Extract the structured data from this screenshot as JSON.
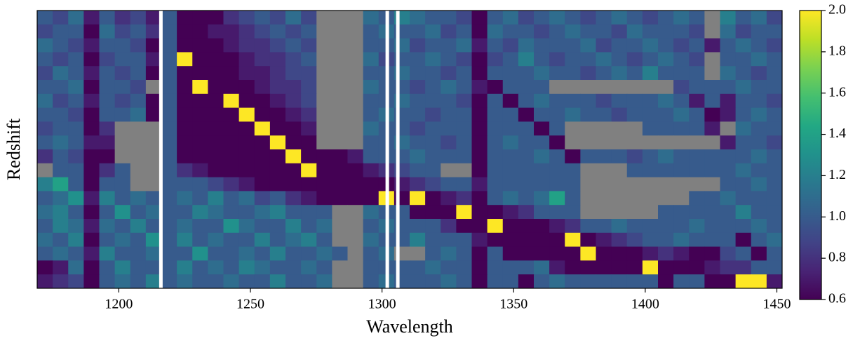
{
  "chart_data": {
    "type": "heatmap",
    "xlabel": "Wavelength",
    "ylabel": "Redshift",
    "xlim": [
      1169,
      1452
    ],
    "xticks": [
      1200,
      1250,
      1300,
      1350,
      1400,
      1450
    ],
    "colormap": "viridis",
    "clim": [
      0.6,
      2.0
    ],
    "cticks": [
      0.6,
      0.8,
      {
        "value": 1.0,
        "label": "1.0"
      },
      1.2,
      1.4,
      1.6,
      1.8,
      {
        "value": 2.0,
        "label": "2.0"
      }
    ],
    "mask_color": "#808080",
    "vlines": [
      1216,
      1302,
      1306
    ],
    "vline_color": "#ffffff",
    "values": [
      [
        1.0,
        0.9,
        1.1,
        0.7,
        1.0,
        0.8,
        0.9,
        0.7,
        1.0,
        0.6,
        0.6,
        0.6,
        0.8,
        0.9,
        1.0,
        0.9,
        1.1,
        0.9,
        null,
        null,
        null,
        1.1,
        1.0,
        1.2,
        1.1,
        1.0,
        1.0,
        0.9,
        0.6,
        1.0,
        1.1,
        0.9,
        1.0,
        1.1,
        1.0,
        0.9,
        1.0,
        1.1,
        1.0,
        0.9,
        1.0,
        1.1,
        1.0,
        null,
        1.2,
        1.0,
        1.1,
        0.9
      ],
      [
        0.9,
        1.0,
        1.0,
        0.6,
        1.1,
        0.9,
        1.0,
        0.8,
        1.0,
        0.6,
        0.6,
        0.7,
        0.7,
        0.8,
        0.9,
        1.0,
        0.9,
        1.0,
        null,
        null,
        null,
        1.0,
        1.1,
        1.0,
        1.0,
        1.1,
        0.9,
        1.0,
        0.6,
        1.1,
        1.0,
        1.0,
        0.9,
        1.0,
        1.1,
        1.0,
        1.0,
        0.9,
        1.1,
        1.0,
        1.0,
        1.0,
        0.9,
        null,
        1.1,
        0.9,
        1.0,
        1.0
      ],
      [
        1.1,
        1.0,
        0.9,
        0.7,
        1.0,
        1.0,
        0.9,
        0.6,
        1.0,
        0.6,
        0.6,
        0.6,
        0.7,
        0.8,
        0.8,
        0.9,
        1.0,
        0.9,
        null,
        null,
        null,
        1.0,
        1.0,
        1.1,
        0.9,
        1.0,
        1.0,
        1.1,
        0.7,
        1.0,
        0.9,
        1.1,
        1.0,
        1.0,
        1.0,
        1.1,
        0.9,
        1.0,
        1.0,
        1.1,
        1.0,
        0.9,
        1.0,
        0.7,
        1.0,
        1.1,
        1.0,
        0.9
      ],
      [
        1.0,
        0.9,
        1.0,
        0.6,
        0.9,
        1.0,
        1.0,
        0.7,
        1.0,
        2.0,
        0.6,
        0.6,
        0.6,
        0.7,
        0.8,
        0.8,
        0.9,
        1.0,
        null,
        null,
        null,
        1.1,
        0.9,
        1.0,
        1.0,
        1.1,
        1.0,
        0.9,
        0.6,
        0.9,
        1.0,
        1.2,
        1.0,
        0.9,
        1.0,
        1.0,
        1.1,
        1.0,
        0.9,
        1.0,
        1.1,
        1.0,
        0.9,
        null,
        1.0,
        1.0,
        1.1,
        1.0
      ],
      [
        0.9,
        1.1,
        1.0,
        0.7,
        1.0,
        0.9,
        1.0,
        0.6,
        1.0,
        0.6,
        0.6,
        0.6,
        0.6,
        0.7,
        0.7,
        0.8,
        0.9,
        0.9,
        null,
        null,
        null,
        1.0,
        1.0,
        1.1,
        1.0,
        1.0,
        0.9,
        1.0,
        0.6,
        1.0,
        1.0,
        1.0,
        1.1,
        1.0,
        1.0,
        0.9,
        1.0,
        1.1,
        1.0,
        1.2,
        1.0,
        1.0,
        1.0,
        null,
        1.1,
        1.0,
        0.9,
        1.0
      ],
      [
        1.0,
        1.0,
        1.1,
        0.6,
        1.0,
        1.0,
        0.9,
        null,
        1.0,
        0.6,
        2.0,
        0.6,
        0.6,
        0.6,
        0.7,
        0.8,
        0.8,
        0.9,
        null,
        null,
        null,
        1.1,
        1.0,
        1.0,
        0.9,
        1.0,
        1.1,
        1.0,
        0.7,
        0.6,
        1.0,
        1.0,
        1.0,
        null,
        null,
        null,
        null,
        null,
        null,
        null,
        null,
        0.9,
        1.0,
        1.0,
        1.0,
        1.1,
        1.0,
        1.0
      ],
      [
        1.1,
        0.9,
        1.0,
        0.7,
        1.0,
        0.9,
        1.0,
        0.6,
        1.0,
        0.6,
        0.6,
        0.6,
        2.0,
        0.6,
        0.6,
        0.7,
        0.8,
        0.9,
        null,
        null,
        null,
        1.0,
        1.0,
        1.1,
        1.0,
        1.0,
        1.0,
        0.9,
        0.6,
        1.0,
        0.6,
        1.0,
        1.1,
        1.0,
        1.0,
        1.0,
        0.9,
        1.0,
        1.0,
        1.0,
        1.1,
        1.0,
        0.7,
        1.0,
        0.7,
        1.0,
        1.0,
        0.9
      ],
      [
        1.0,
        1.0,
        0.9,
        0.6,
        1.0,
        1.0,
        1.1,
        0.6,
        1.0,
        0.6,
        0.6,
        0.6,
        0.6,
        2.0,
        0.6,
        0.6,
        0.7,
        0.8,
        null,
        null,
        null,
        1.0,
        1.1,
        1.0,
        1.0,
        0.9,
        1.0,
        1.0,
        0.6,
        1.0,
        1.0,
        0.6,
        1.0,
        1.0,
        1.1,
        1.0,
        1.0,
        0.9,
        1.0,
        1.0,
        1.0,
        1.1,
        1.0,
        0.6,
        0.7,
        1.0,
        1.1,
        1.0
      ],
      [
        0.9,
        1.0,
        1.0,
        0.6,
        0.8,
        null,
        null,
        null,
        1.0,
        0.6,
        0.6,
        0.6,
        0.6,
        0.6,
        2.0,
        0.6,
        0.6,
        0.7,
        null,
        null,
        null,
        1.1,
        1.0,
        1.0,
        0.9,
        1.0,
        1.0,
        1.0,
        0.6,
        1.0,
        1.0,
        1.0,
        0.6,
        1.0,
        null,
        null,
        null,
        null,
        null,
        1.0,
        1.0,
        1.0,
        1.0,
        0.7,
        null,
        1.1,
        1.0,
        1.0
      ],
      [
        1.0,
        1.1,
        1.0,
        0.7,
        0.7,
        null,
        null,
        null,
        1.0,
        0.6,
        0.6,
        0.6,
        0.6,
        0.6,
        0.6,
        2.0,
        0.6,
        0.6,
        null,
        null,
        null,
        1.0,
        1.0,
        1.1,
        1.0,
        1.0,
        0.9,
        1.0,
        0.6,
        1.0,
        1.1,
        1.0,
        1.0,
        0.6,
        null,
        null,
        null,
        null,
        null,
        null,
        null,
        null,
        null,
        null,
        0.7,
        1.0,
        1.0,
        0.9
      ],
      [
        0.8,
        1.0,
        0.9,
        0.6,
        0.6,
        null,
        null,
        null,
        1.0,
        0.6,
        0.6,
        0.6,
        0.6,
        0.6,
        0.6,
        0.6,
        2.0,
        0.6,
        0.6,
        0.6,
        0.7,
        1.0,
        1.0,
        1.0,
        1.1,
        1.0,
        1.0,
        1.0,
        0.6,
        1.0,
        1.0,
        1.0,
        1.1,
        1.0,
        0.6,
        1.0,
        1.0,
        1.0,
        0.9,
        1.0,
        1.1,
        1.0,
        1.0,
        1.0,
        1.0,
        1.0,
        1.1,
        1.0
      ],
      [
        null,
        1.0,
        1.0,
        0.6,
        0.8,
        1.0,
        null,
        null,
        1.0,
        0.8,
        0.7,
        0.6,
        0.6,
        0.6,
        0.6,
        0.6,
        0.6,
        2.0,
        0.6,
        0.6,
        0.6,
        0.7,
        0.8,
        0.9,
        1.0,
        1.0,
        null,
        null,
        0.6,
        1.0,
        1.0,
        1.0,
        1.0,
        1.0,
        1.0,
        null,
        null,
        null,
        1.0,
        1.0,
        1.0,
        1.0,
        1.0,
        1.0,
        1.0,
        1.1,
        1.0,
        1.0
      ],
      [
        1.2,
        1.4,
        1.0,
        0.6,
        1.0,
        1.0,
        null,
        null,
        1.0,
        1.0,
        1.0,
        0.9,
        0.8,
        0.7,
        0.6,
        0.6,
        0.6,
        0.6,
        0.6,
        0.6,
        0.6,
        0.6,
        0.6,
        0.7,
        0.8,
        0.9,
        1.0,
        1.0,
        0.7,
        1.0,
        1.0,
        1.0,
        1.0,
        1.0,
        1.0,
        null,
        null,
        null,
        null,
        null,
        null,
        null,
        null,
        null,
        1.0,
        1.0,
        1.1,
        1.0
      ],
      [
        1.0,
        1.1,
        1.3,
        0.7,
        1.2,
        1.0,
        1.1,
        1.0,
        1.0,
        1.1,
        1.0,
        1.2,
        1.0,
        1.1,
        0.9,
        1.0,
        0.8,
        0.7,
        0.6,
        0.6,
        0.6,
        0.6,
        2.0,
        0.6,
        2.0,
        0.6,
        0.7,
        0.8,
        0.6,
        1.0,
        1.1,
        1.0,
        1.1,
        1.4,
        1.0,
        null,
        null,
        null,
        null,
        null,
        null,
        null,
        1.0,
        1.0,
        1.1,
        1.0,
        1.0,
        1.0
      ],
      [
        1.1,
        1.2,
        1.0,
        0.6,
        1.0,
        1.3,
        1.0,
        1.1,
        1.0,
        1.0,
        1.2,
        1.1,
        1.0,
        1.0,
        1.1,
        1.2,
        1.0,
        1.0,
        1.0,
        null,
        null,
        1.1,
        1.0,
        1.0,
        0.6,
        0.6,
        0.6,
        2.0,
        0.6,
        0.6,
        0.7,
        0.8,
        1.0,
        1.0,
        1.0,
        null,
        null,
        null,
        null,
        null,
        1.0,
        1.0,
        1.0,
        1.0,
        1.0,
        1.2,
        1.0,
        1.0
      ],
      [
        1.0,
        1.2,
        1.1,
        0.7,
        1.1,
        1.0,
        1.2,
        1.0,
        1.0,
        1.1,
        1.0,
        1.0,
        1.3,
        1.1,
        1.0,
        1.0,
        1.2,
        1.0,
        1.1,
        null,
        null,
        1.0,
        1.1,
        1.0,
        1.0,
        1.0,
        0.8,
        0.6,
        0.6,
        2.0,
        0.6,
        0.6,
        0.6,
        0.7,
        0.8,
        1.0,
        1.0,
        1.1,
        1.0,
        1.0,
        1.0,
        1.0,
        1.1,
        1.0,
        1.0,
        1.0,
        1.1,
        1.0
      ],
      [
        1.1,
        1.0,
        1.2,
        0.6,
        1.0,
        1.1,
        1.0,
        1.3,
        1.0,
        1.2,
        1.0,
        1.1,
        1.0,
        1.0,
        1.2,
        1.0,
        1.1,
        1.2,
        1.0,
        null,
        null,
        1.1,
        1.0,
        1.0,
        1.2,
        1.0,
        1.0,
        1.0,
        0.7,
        0.6,
        0.6,
        0.6,
        0.6,
        0.6,
        2.0,
        0.6,
        0.7,
        0.8,
        0.9,
        1.0,
        1.0,
        1.1,
        1.0,
        1.0,
        1.0,
        0.6,
        1.0,
        1.1
      ],
      [
        1.0,
        1.1,
        1.0,
        0.7,
        1.2,
        1.0,
        1.0,
        1.1,
        1.0,
        1.0,
        1.3,
        1.0,
        1.0,
        1.1,
        1.0,
        1.2,
        1.0,
        1.0,
        1.1,
        1.0,
        null,
        1.0,
        1.1,
        null,
        null,
        1.0,
        1.1,
        1.0,
        0.6,
        1.0,
        0.6,
        0.6,
        0.6,
        0.6,
        0.6,
        2.0,
        0.6,
        0.6,
        0.6,
        0.7,
        0.8,
        0.7,
        0.6,
        0.6,
        0.9,
        1.0,
        0.6,
        1.0
      ],
      [
        0.6,
        0.7,
        1.1,
        0.6,
        1.0,
        1.2,
        1.0,
        1.0,
        1.0,
        1.2,
        1.0,
        1.1,
        1.0,
        1.2,
        1.1,
        1.0,
        1.0,
        1.1,
        1.0,
        null,
        null,
        1.0,
        1.0,
        1.0,
        1.0,
        1.1,
        1.0,
        1.0,
        0.6,
        1.0,
        1.0,
        1.0,
        1.1,
        0.7,
        0.6,
        0.6,
        0.6,
        0.6,
        0.6,
        2.0,
        0.6,
        0.6,
        0.6,
        0.7,
        0.8,
        0.8,
        1.0,
        1.0
      ],
      [
        0.7,
        0.8,
        0.9,
        0.6,
        1.0,
        1.1,
        1.0,
        1.2,
        1.0,
        1.1,
        1.0,
        1.0,
        1.1,
        1.0,
        1.0,
        1.2,
        1.0,
        1.0,
        1.1,
        null,
        null,
        1.0,
        1.1,
        1.0,
        1.0,
        1.0,
        1.1,
        1.0,
        0.6,
        1.0,
        1.0,
        0.6,
        1.0,
        1.1,
        1.0,
        1.0,
        1.0,
        1.0,
        1.0,
        1.0,
        0.6,
        1.0,
        1.0,
        0.6,
        0.6,
        2.0,
        2.0,
        0.7
      ]
    ]
  }
}
